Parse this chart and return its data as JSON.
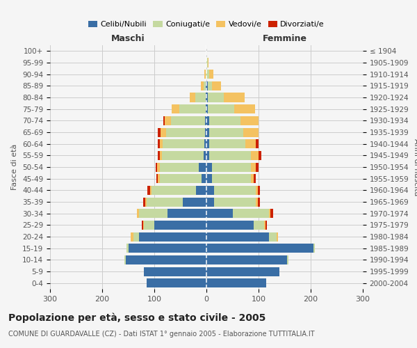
{
  "age_groups": [
    "0-4",
    "5-9",
    "10-14",
    "15-19",
    "20-24",
    "25-29",
    "30-34",
    "35-39",
    "40-44",
    "45-49",
    "50-54",
    "55-59",
    "60-64",
    "65-69",
    "70-74",
    "75-79",
    "80-84",
    "85-89",
    "90-94",
    "95-99",
    "100+"
  ],
  "birth_years": [
    "2000-2004",
    "1995-1999",
    "1990-1994",
    "1985-1989",
    "1980-1984",
    "1975-1979",
    "1970-1974",
    "1965-1969",
    "1960-1964",
    "1955-1959",
    "1950-1954",
    "1945-1949",
    "1940-1944",
    "1935-1939",
    "1930-1934",
    "1925-1929",
    "1920-1924",
    "1915-1919",
    "1910-1914",
    "1905-1909",
    "≤ 1904"
  ],
  "males": {
    "celibi": [
      115,
      120,
      155,
      150,
      130,
      100,
      75,
      45,
      20,
      10,
      15,
      5,
      4,
      3,
      3,
      2,
      2,
      1,
      0,
      0,
      0
    ],
    "coniugati": [
      0,
      0,
      2,
      3,
      10,
      20,
      55,
      70,
      85,
      80,
      75,
      80,
      80,
      75,
      65,
      50,
      20,
      5,
      2,
      0,
      0
    ],
    "vedovi": [
      0,
      0,
      0,
      0,
      5,
      2,
      3,
      3,
      3,
      3,
      5,
      5,
      5,
      10,
      12,
      15,
      10,
      5,
      2,
      0,
      0
    ],
    "divorziati": [
      0,
      0,
      0,
      0,
      0,
      2,
      0,
      3,
      5,
      3,
      3,
      3,
      5,
      5,
      3,
      0,
      0,
      0,
      0,
      0,
      0
    ]
  },
  "females": {
    "nubili": [
      115,
      140,
      155,
      205,
      120,
      90,
      50,
      15,
      15,
      10,
      10,
      5,
      5,
      5,
      5,
      3,
      3,
      2,
      0,
      0,
      0
    ],
    "coniugate": [
      0,
      0,
      2,
      3,
      15,
      20,
      70,
      80,
      80,
      75,
      75,
      80,
      70,
      65,
      60,
      50,
      30,
      8,
      5,
      2,
      0
    ],
    "vedove": [
      0,
      0,
      0,
      0,
      2,
      3,
      3,
      3,
      3,
      5,
      10,
      15,
      20,
      30,
      35,
      40,
      40,
      18,
      8,
      2,
      0
    ],
    "divorziate": [
      0,
      0,
      0,
      0,
      0,
      3,
      5,
      5,
      5,
      5,
      5,
      5,
      5,
      0,
      0,
      0,
      0,
      0,
      0,
      0,
      0
    ]
  },
  "colors": {
    "celibi": "#3A6EA5",
    "coniugati": "#C5D9A0",
    "vedovi": "#F4C261",
    "divorziati": "#CC2200"
  },
  "xlim": 300,
  "title": "Popolazione per età, sesso e stato civile - 2005",
  "subtitle": "COMUNE DI GUARDAVALLE (CZ) - Dati ISTAT 1° gennaio 2005 - Elaborazione TUTTITALIA.IT",
  "ylabel_left": "Fasce di età",
  "ylabel_right": "Anni di nascita",
  "xlabel_left": "Maschi",
  "xlabel_right": "Femmine",
  "background_color": "#f5f5f5",
  "grid_color": "#cccccc"
}
